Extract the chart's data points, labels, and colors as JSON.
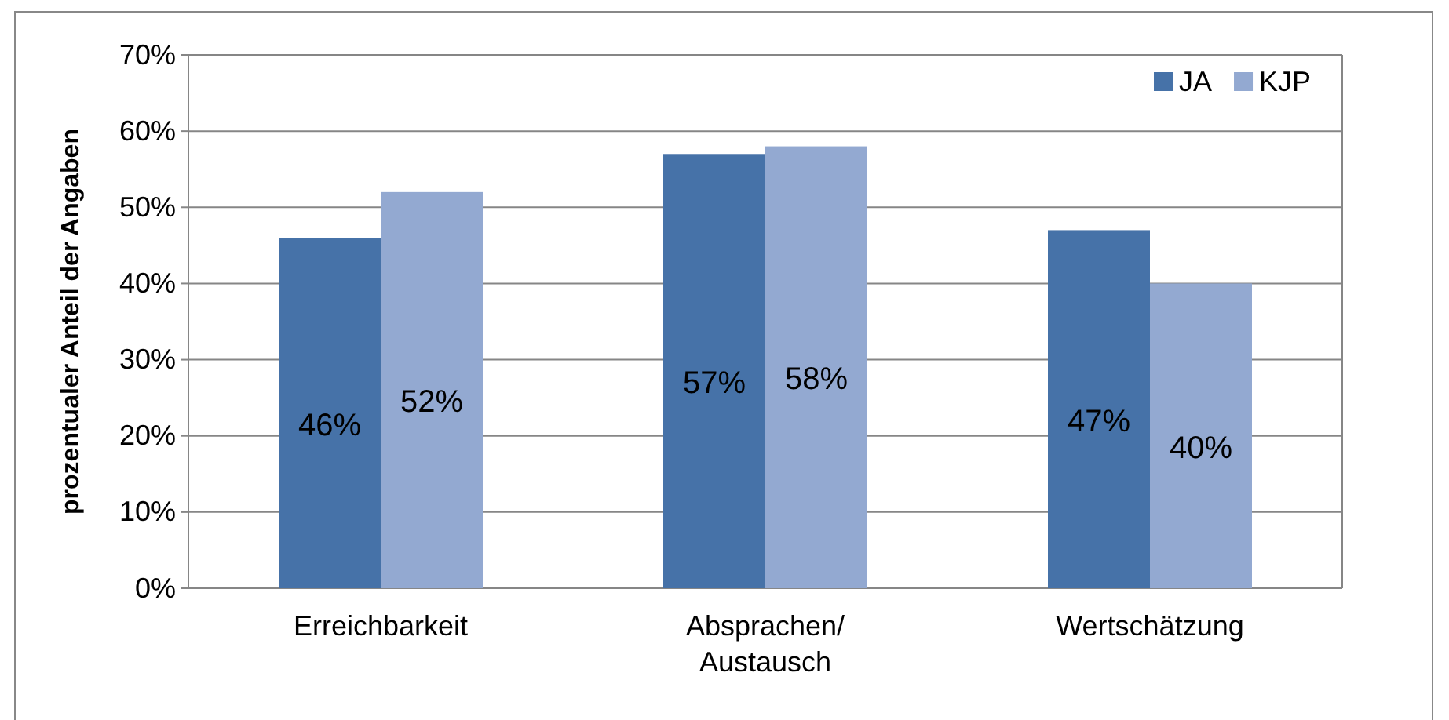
{
  "chart_data": {
    "type": "bar",
    "ylabel": "prozentualer Anteil der Angaben",
    "categories": [
      "Erreichbarkeit",
      "Absprachen/ Austausch",
      "Wertschätzung"
    ],
    "series": [
      {
        "name": "JA",
        "color": "#4672a8",
        "values": [
          46,
          57,
          47
        ],
        "value_labels": [
          "46%",
          "57%",
          "47%"
        ]
      },
      {
        "name": "KJP",
        "color": "#93a9d1",
        "values": [
          52,
          58,
          40
        ],
        "value_labels": [
          "52%",
          "58%",
          "40%"
        ]
      }
    ],
    "ylim": [
      0,
      70
    ],
    "yticks": [
      {
        "value": 0,
        "label": "0%"
      },
      {
        "value": 10,
        "label": "10%"
      },
      {
        "value": 20,
        "label": "20%"
      },
      {
        "value": 30,
        "label": "30%"
      },
      {
        "value": 40,
        "label": "40%"
      },
      {
        "value": 50,
        "label": "50%"
      },
      {
        "value": 60,
        "label": "60%"
      },
      {
        "value": 70,
        "label": "70%"
      }
    ],
    "grid": "y",
    "legend": "top right"
  }
}
